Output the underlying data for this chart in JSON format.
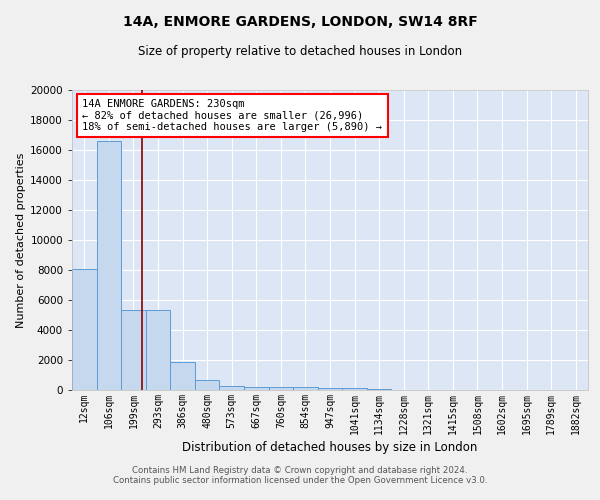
{
  "title_line1": "14A, ENMORE GARDENS, LONDON, SW14 8RF",
  "title_line2": "Size of property relative to detached houses in London",
  "xlabel": "Distribution of detached houses by size in London",
  "ylabel": "Number of detached properties",
  "bar_color": "#c5d8ee",
  "bar_edge_color": "#5b9bd5",
  "background_color": "#dce6f5",
  "grid_color": "#ffffff",
  "categories": [
    "12sqm",
    "106sqm",
    "199sqm",
    "293sqm",
    "386sqm",
    "480sqm",
    "573sqm",
    "667sqm",
    "760sqm",
    "854sqm",
    "947sqm",
    "1041sqm",
    "1134sqm",
    "1228sqm",
    "1321sqm",
    "1415sqm",
    "1508sqm",
    "1602sqm",
    "1695sqm",
    "1789sqm",
    "1882sqm"
  ],
  "values": [
    8050,
    16600,
    5350,
    5350,
    1850,
    700,
    300,
    230,
    200,
    180,
    150,
    130,
    100,
    0,
    0,
    0,
    0,
    0,
    0,
    0,
    0
  ],
  "annotation_text": "14A ENMORE GARDENS: 230sqm\n← 82% of detached houses are smaller (26,996)\n18% of semi-detached houses are larger (5,890) →",
  "vline_x": 2.85,
  "ylim": [
    0,
    20000
  ],
  "yticks": [
    0,
    2000,
    4000,
    6000,
    8000,
    10000,
    12000,
    14000,
    16000,
    18000,
    20000
  ],
  "fig_bg": "#f0f0f0",
  "footer_line1": "Contains HM Land Registry data © Crown copyright and database right 2024.",
  "footer_line2": "Contains public sector information licensed under the Open Government Licence v3.0."
}
